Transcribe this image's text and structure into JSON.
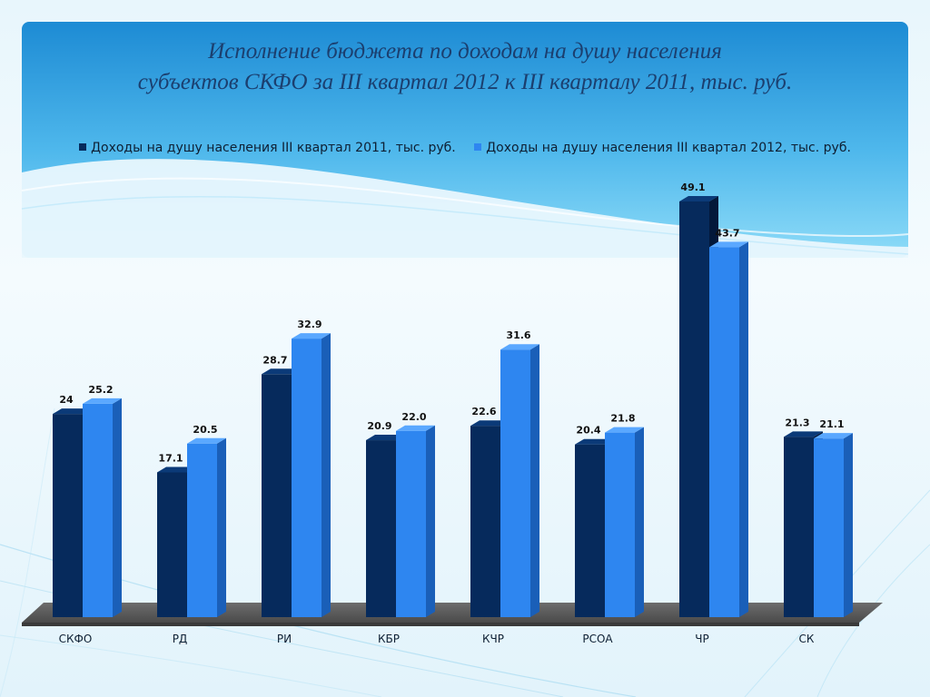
{
  "colors": {
    "series_2011": "#062a5c",
    "series_2012": "#2e86f0",
    "panel_top": "#1e8fd6",
    "panel_bottom": "#6fcff3"
  },
  "title": {
    "line1": "Исполнение бюджета по доходам на душу населения",
    "line2": "субъектов СКФО за III квартал 2012 к III кварталу 2011, тыс. руб."
  },
  "chart_data": {
    "type": "bar",
    "title": "Исполнение бюджета по доходам на душу населения субъектов СКФО за III квартал 2012 к III кварталу 2011, тыс. руб.",
    "categories": [
      "СКФО",
      "РД",
      "РИ",
      "КБР",
      "КЧР",
      "РСОА",
      "ЧР",
      "СК"
    ],
    "series": [
      {
        "name": "Доходы на душу населения III квартал 2011, тыс. руб.",
        "values": [
          24,
          17.1,
          28.7,
          20.9,
          22.6,
          20.4,
          49.1,
          21.3
        ],
        "labels": [
          "24",
          "17.1",
          "28.7",
          "20.9",
          "22.6",
          "20.4",
          "49.1",
          "21.3"
        ]
      },
      {
        "name": "Доходы на душу населения III квартал 2012, тыс. руб.",
        "values": [
          25.2,
          20.5,
          32.9,
          22.0,
          31.6,
          21.8,
          43.7,
          21.1
        ],
        "labels": [
          "25.2",
          "20.5",
          "32.9",
          "22.0",
          "31.6",
          "21.8",
          "43.7",
          "21.1"
        ]
      }
    ],
    "ylim": [
      0,
      52
    ],
    "legend": "top-center",
    "grid": false,
    "style": "3d-column"
  }
}
